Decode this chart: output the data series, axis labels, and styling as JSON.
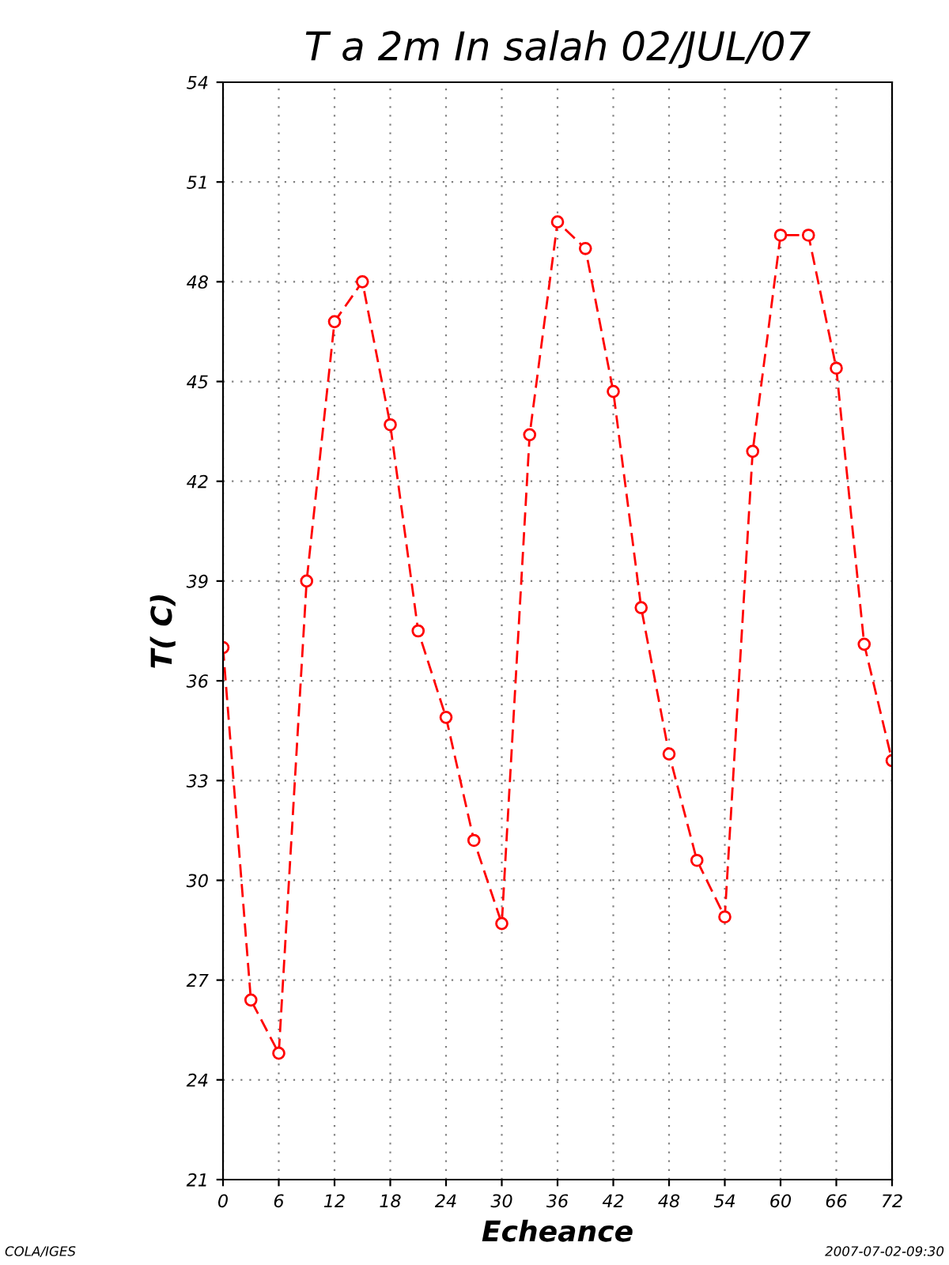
{
  "chart_data": {
    "type": "line",
    "title": "T a 2m In salah 02/JUL/07",
    "xlabel": "Echeance",
    "ylabel": "T( C)",
    "x": [
      0,
      3,
      6,
      9,
      12,
      15,
      18,
      21,
      24,
      27,
      30,
      33,
      36,
      39,
      42,
      45,
      48,
      51,
      54,
      57,
      60,
      63,
      66,
      69,
      72
    ],
    "series": [
      {
        "color": "#ff0000",
        "values": [
          37.0,
          26.4,
          24.8,
          39.0,
          46.8,
          48.0,
          43.7,
          37.5,
          34.9,
          31.2,
          28.7,
          43.4,
          49.8,
          49.0,
          44.7,
          38.2,
          33.8,
          30.6,
          28.9,
          42.9,
          49.4,
          49.4,
          45.4,
          37.1,
          33.6
        ]
      }
    ],
    "xlim": [
      0,
      72
    ],
    "xticks": [
      0,
      6,
      12,
      18,
      24,
      30,
      36,
      42,
      48,
      54,
      60,
      66,
      72
    ],
    "ylim": [
      21,
      54
    ],
    "yticks": [
      21,
      24,
      27,
      30,
      33,
      36,
      39,
      42,
      45,
      48,
      51,
      54
    ],
    "grid": true,
    "marker": "circle",
    "line_style": "dashed",
    "annotations": [
      "COLA/IGES",
      "2007-07-02-09:30"
    ]
  }
}
